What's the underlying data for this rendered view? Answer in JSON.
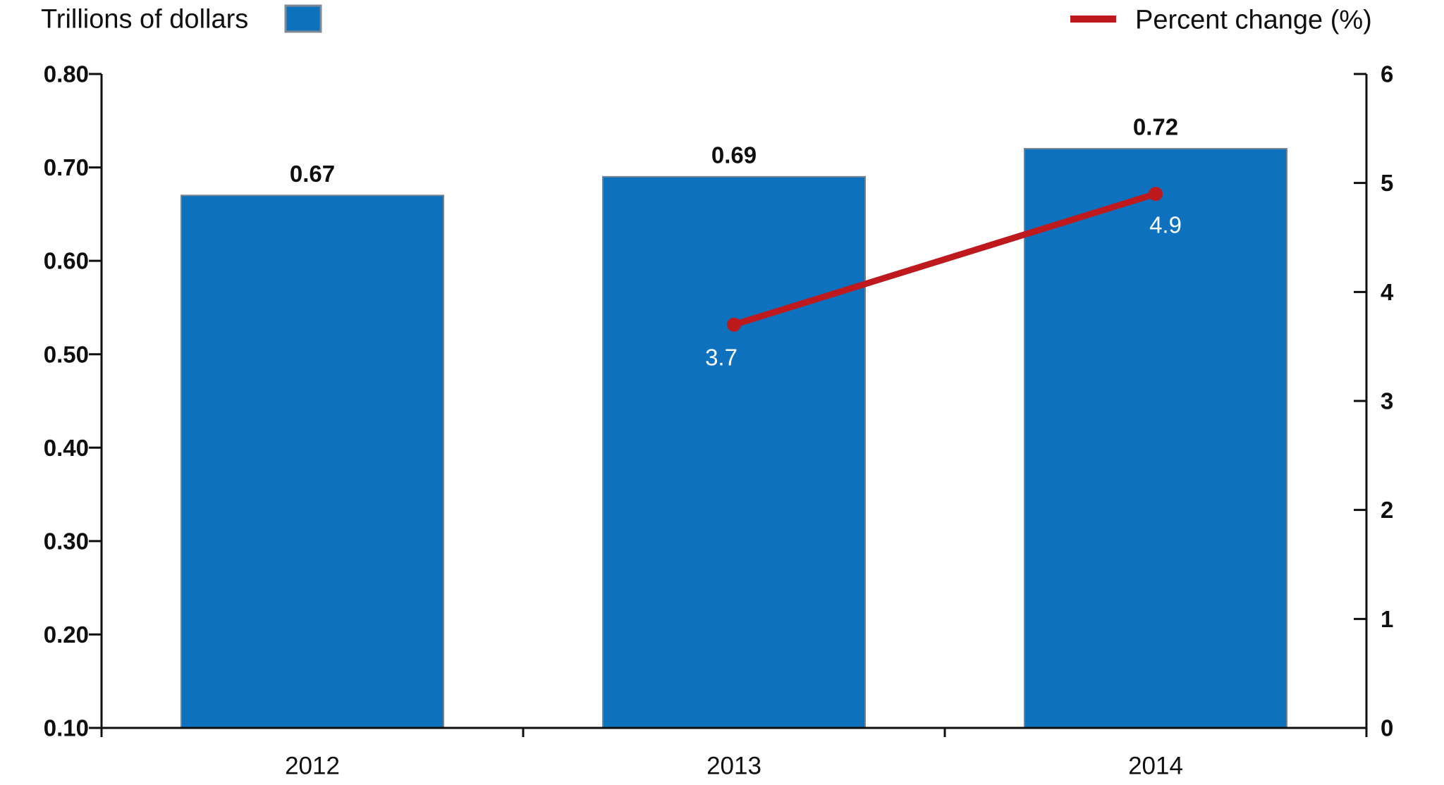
{
  "legend": {
    "left_label": "Trillions of dollars",
    "right_label": "Percent change (%)"
  },
  "colors": {
    "bar_fill": "#0D71BD",
    "bar_border": "#718392",
    "line": "#BE1A1E",
    "axis": "#0F0F0F",
    "text": "#0F0F0F",
    "point_label": "#FFFFFF"
  },
  "chart_data": {
    "type": "bar+line combo",
    "categories": [
      "2012",
      "2013",
      "2014"
    ],
    "series": [
      {
        "name": "Trillions of dollars",
        "type": "bar",
        "axis": "left",
        "values": [
          0.67,
          0.69,
          0.72
        ],
        "value_labels": [
          "0.67",
          "0.69",
          "0.72"
        ]
      },
      {
        "name": "Percent change (%)",
        "type": "line",
        "axis": "right",
        "values": [
          null,
          3.7,
          4.9
        ],
        "value_labels": [
          null,
          "3.7",
          "4.9"
        ]
      }
    ],
    "left_axis": {
      "title": "Trillions of dollars",
      "min": 0.1,
      "max": 0.8,
      "step": 0.1,
      "tick_labels": [
        "0.10",
        "0.20",
        "0.30",
        "0.40",
        "0.50",
        "0.60",
        "0.70",
        "0.80"
      ]
    },
    "right_axis": {
      "title": "Percent change (%)",
      "min": 0,
      "max": 6,
      "step": 1,
      "tick_labels": [
        "0",
        "1",
        "2",
        "3",
        "4",
        "5",
        "6"
      ]
    },
    "grid": false,
    "legend_position": "top (left swatch = bars, right swatch = line)"
  }
}
